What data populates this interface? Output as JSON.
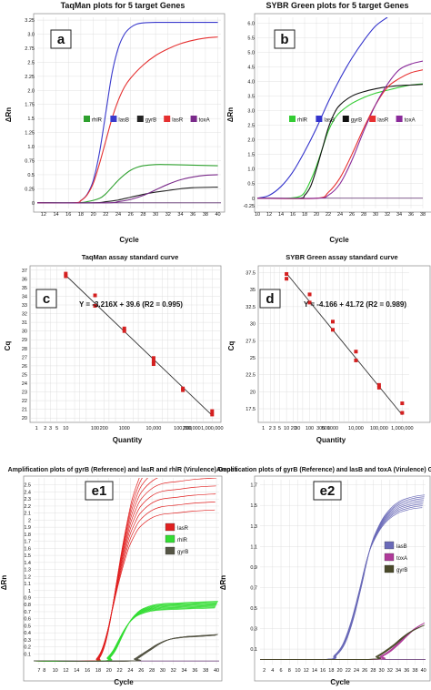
{
  "chart_data": [
    {
      "id": "a",
      "type": "line",
      "panel_label": "a",
      "title": "TaqMan plots for 5 target Genes",
      "xlabel": "Cycle",
      "ylabel": "ΔRn",
      "xlim": [
        11,
        40.5
      ],
      "ylim": [
        -0.1,
        3.3
      ],
      "xticks": [
        12,
        14,
        16,
        18,
        20,
        22,
        24,
        26,
        28,
        30,
        32,
        34,
        36,
        38,
        40
      ],
      "yticks": [
        0,
        0.25,
        0.5,
        0.75,
        1.0,
        1.25,
        1.5,
        1.75,
        2.0,
        2.25,
        2.5,
        2.75,
        3.0,
        3.25
      ],
      "ytick_labels": [
        "0",
        "0.25",
        "0.5",
        "0.75",
        "1.0",
        "1.25",
        "1.5",
        "1.75",
        "2.0",
        "2.25",
        "2.5",
        "2.75",
        "3.0",
        "3.25"
      ],
      "grid": true,
      "legend_position": "center-right",
      "series": [
        {
          "name": "rhlR",
          "color": "#2ea02e",
          "x": [
            11,
            17,
            19,
            21,
            22,
            23,
            24,
            25,
            26,
            27,
            28,
            30,
            32,
            36,
            40
          ],
          "y": [
            0,
            0,
            0.02,
            0.08,
            0.16,
            0.28,
            0.4,
            0.5,
            0.58,
            0.63,
            0.66,
            0.68,
            0.68,
            0.67,
            0.66
          ]
        },
        {
          "name": "lasB",
          "color": "#3a3acc",
          "x": [
            11,
            17,
            18,
            19,
            20,
            21,
            22,
            23,
            24,
            25,
            26,
            27,
            28,
            30,
            34,
            40
          ],
          "y": [
            0,
            0,
            0.04,
            0.15,
            0.4,
            0.9,
            1.6,
            2.3,
            2.75,
            3.0,
            3.12,
            3.18,
            3.2,
            3.21,
            3.21,
            3.21
          ]
        },
        {
          "name": "gyrB",
          "color": "#222222",
          "x": [
            11,
            20,
            22,
            24,
            26,
            28,
            30,
            32,
            34,
            36,
            40
          ],
          "y": [
            0,
            0,
            0.02,
            0.05,
            0.1,
            0.15,
            0.19,
            0.22,
            0.25,
            0.27,
            0.28
          ]
        },
        {
          "name": "lasR",
          "color": "#e53030",
          "x": [
            11,
            17,
            18,
            19,
            20,
            21,
            22,
            23,
            24,
            25,
            26,
            28,
            30,
            32,
            34,
            36,
            38,
            40
          ],
          "y": [
            0,
            0,
            0.04,
            0.14,
            0.35,
            0.7,
            1.1,
            1.5,
            1.82,
            2.06,
            2.22,
            2.45,
            2.62,
            2.74,
            2.83,
            2.89,
            2.93,
            2.95
          ]
        },
        {
          "name": "toxA",
          "color": "#7a2a8a",
          "x": [
            11,
            22,
            24,
            26,
            28,
            30,
            32,
            34,
            36,
            38,
            40
          ],
          "y": [
            0,
            0,
            0.02,
            0.06,
            0.13,
            0.23,
            0.33,
            0.41,
            0.46,
            0.49,
            0.5
          ]
        }
      ]
    },
    {
      "id": "b",
      "type": "line",
      "panel_label": "b",
      "title": "SYBR Green plots for 5 target Genes",
      "xlabel": "Cycle",
      "ylabel": "ΔRn",
      "xlim": [
        10,
        38
      ],
      "ylim": [
        -0.35,
        6.2
      ],
      "xticks": [
        10,
        12,
        14,
        16,
        18,
        20,
        22,
        24,
        26,
        28,
        30,
        32,
        34,
        36,
        38
      ],
      "yticks": [
        -0.25,
        0,
        0.5,
        1.0,
        1.5,
        2.0,
        2.5,
        3.0,
        3.5,
        4.0,
        4.5,
        5.0,
        5.5,
        6.0
      ],
      "ytick_labels": [
        "-0.25",
        "0",
        "0.5",
        "1.0",
        "1.5",
        "2.0",
        "2.5",
        "3.0",
        "3.5",
        "4.0",
        "4.5",
        "5.0",
        "5.5",
        "6.0"
      ],
      "grid": true,
      "legend_position": "center-right",
      "series": [
        {
          "name": "rhlR",
          "color": "#33cc33",
          "x": [
            10,
            15,
            17,
            18,
            19,
            20,
            21,
            22,
            23,
            24,
            26,
            28,
            30,
            32,
            34,
            36,
            38
          ],
          "y": [
            0,
            0,
            0.05,
            0.2,
            0.6,
            1.1,
            1.7,
            2.3,
            2.7,
            2.95,
            3.25,
            3.45,
            3.6,
            3.7,
            3.8,
            3.88,
            3.92
          ]
        },
        {
          "name": "lasB",
          "color": "#3333cc",
          "x": [
            10,
            12,
            14,
            16,
            18,
            20,
            22,
            24,
            26,
            28,
            30,
            32
          ],
          "y": [
            0,
            0.1,
            0.4,
            0.9,
            1.6,
            2.4,
            3.3,
            4.1,
            4.8,
            5.4,
            5.9,
            6.2
          ]
        },
        {
          "name": "gyrB",
          "color": "#111111",
          "x": [
            10,
            17,
            18,
            19,
            20,
            21,
            22,
            23,
            24,
            26,
            28,
            30,
            32,
            34,
            36,
            38
          ],
          "y": [
            0,
            0,
            0.1,
            0.4,
            1.0,
            1.7,
            2.4,
            2.9,
            3.2,
            3.5,
            3.65,
            3.75,
            3.82,
            3.86,
            3.88,
            3.9
          ]
        },
        {
          "name": "lasR",
          "color": "#e83030",
          "x": [
            10,
            20,
            22,
            24,
            26,
            28,
            30,
            32,
            34,
            36,
            38
          ],
          "y": [
            0,
            0,
            0.2,
            0.7,
            1.5,
            2.4,
            3.2,
            3.8,
            4.1,
            4.3,
            4.4
          ]
        },
        {
          "name": "toxA",
          "color": "#8a2a9a",
          "x": [
            10,
            20,
            22,
            24,
            26,
            28,
            30,
            32,
            34,
            36,
            38
          ],
          "y": [
            0,
            0,
            0.1,
            0.5,
            1.3,
            2.3,
            3.2,
            3.9,
            4.4,
            4.6,
            4.7
          ]
        }
      ]
    },
    {
      "id": "c",
      "type": "scatter",
      "panel_label": "c",
      "title": "TaqMan assay standard curve",
      "xlabel": "Quantity",
      "ylabel": "Cq",
      "xscale": "log",
      "xlim": [
        0.6,
        2000000
      ],
      "ylim": [
        19.5,
        37.5
      ],
      "xticks": [
        1,
        2,
        3,
        5,
        10,
        20,
        30,
        50,
        100,
        200,
        300,
        500,
        1000,
        2000,
        3000,
        5000,
        10000,
        20000,
        30000,
        50000,
        100000,
        200000,
        300000,
        500000,
        1000000
      ],
      "xtick_labels": [
        "1",
        "2",
        "3",
        "5",
        "10",
        "",
        "",
        "",
        "100",
        "200",
        "",
        "",
        "1000",
        "",
        "",
        "",
        "10,000",
        "",
        "",
        "",
        "100,000",
        "200,000",
        "",
        "",
        "1,000,000"
      ],
      "yticks": [
        20,
        21,
        22,
        23,
        24,
        25,
        26,
        27,
        28,
        29,
        30,
        31,
        32,
        33,
        34,
        35,
        36,
        37
      ],
      "grid": true,
      "equation": "Y = -3.216X + 39.6  (R2 = 0.995)",
      "points": [
        {
          "x": 10,
          "y": 36.6
        },
        {
          "x": 10,
          "y": 36.3
        },
        {
          "x": 100,
          "y": 34.1
        },
        {
          "x": 100,
          "y": 32.9
        },
        {
          "x": 1000,
          "y": 30.3
        },
        {
          "x": 1000,
          "y": 30.0
        },
        {
          "x": 10000,
          "y": 26.9
        },
        {
          "x": 10000,
          "y": 26.5
        },
        {
          "x": 10000,
          "y": 26.2
        },
        {
          "x": 100000,
          "y": 23.4
        },
        {
          "x": 100000,
          "y": 23.2
        },
        {
          "x": 1000000,
          "y": 20.8
        },
        {
          "x": 1000000,
          "y": 20.4
        }
      ],
      "fit_line": {
        "x": [
          10,
          1000000
        ],
        "y": [
          36.4,
          20.3
        ]
      }
    },
    {
      "id": "d",
      "type": "scatter",
      "panel_label": "d",
      "title": "SYBR Green assay standard curve",
      "xlabel": "Quantity",
      "ylabel": "Cq",
      "xscale": "log",
      "xlim": [
        0.6,
        2000000
      ],
      "ylim": [
        15.5,
        38.5
      ],
      "xticks": [
        1,
        2,
        3,
        5,
        10,
        20,
        30,
        50,
        100,
        200,
        300,
        500,
        1000,
        2000,
        3000,
        5000,
        10000,
        20000,
        30000,
        50000,
        100000,
        200000,
        300000,
        500000,
        1000000
      ],
      "xtick_labels": [
        "1",
        "2",
        "3",
        "5",
        "10",
        "20",
        "30",
        "",
        "100",
        "",
        "300",
        "500",
        "1000",
        "",
        "",
        "",
        "10,000",
        "",
        "",
        "",
        "100,000",
        "",
        "",
        "",
        "1,000,000"
      ],
      "yticks": [
        17.5,
        20,
        22.5,
        25,
        27.5,
        30,
        32.5,
        35,
        37.5
      ],
      "grid": true,
      "equation": "Y = -4.166 + 41.72  (R2 = 0.989)",
      "points": [
        {
          "x": 10,
          "y": 37.3
        },
        {
          "x": 10,
          "y": 36.6
        },
        {
          "x": 100,
          "y": 34.3
        },
        {
          "x": 100,
          "y": 33.1
        },
        {
          "x": 1000,
          "y": 30.3
        },
        {
          "x": 1000,
          "y": 29.1
        },
        {
          "x": 10000,
          "y": 25.9
        },
        {
          "x": 10000,
          "y": 24.6
        },
        {
          "x": 100000,
          "y": 21.0
        },
        {
          "x": 100000,
          "y": 20.6
        },
        {
          "x": 1000000,
          "y": 18.3
        },
        {
          "x": 1000000,
          "y": 16.9
        }
      ],
      "fit_line": {
        "x": [
          10,
          1000000
        ],
        "y": [
          37.4,
          16.6
        ]
      }
    },
    {
      "id": "e1",
      "type": "line",
      "panel_label": "e1",
      "title": "Amplification plots of gyrB (Reference) and lasR and rhlR (Virulence) Genes",
      "xlabel": "Cycle",
      "ylabel": "ΔRn",
      "xlim": [
        6,
        40.5
      ],
      "ylim": [
        -0.05,
        2.6
      ],
      "xticks": [
        7,
        8,
        10,
        12,
        14,
        16,
        18,
        20,
        22,
        24,
        26,
        28,
        30,
        32,
        34,
        36,
        38,
        40
      ],
      "yticks": [
        0.1,
        0.2,
        0.3,
        0.4,
        0.5,
        0.6,
        0.7,
        0.8,
        0.9,
        1,
        1.1,
        1.2,
        1.3,
        1.4,
        1.5,
        1.6,
        1.7,
        1.8,
        1.9,
        2,
        2.1,
        2.2,
        2.3,
        2.4,
        2.5
      ],
      "ytick_labels": [
        "0.1",
        "0.2",
        "0.3",
        "0.4",
        "0.5",
        "0.6",
        "0.7",
        "0.8",
        "0.9",
        "1",
        "1.1",
        "1.2",
        "1.3",
        "1.4",
        "1.5",
        "1.6",
        "1.7",
        "1.8",
        "1.9",
        "2",
        "2.1",
        "2.2",
        "2.3",
        "2.4",
        "2.5"
      ],
      "grid": true,
      "legend_position": "right",
      "series": [
        {
          "name": "lasR",
          "color": "#e02020",
          "replicates": 9,
          "spread": 0.35,
          "x": [
            6,
            17,
            18,
            19,
            20,
            21,
            22,
            23,
            24,
            25,
            26,
            28,
            30,
            33,
            36,
            40
          ],
          "y": [
            0,
            0,
            0.04,
            0.2,
            0.5,
            0.9,
            1.3,
            1.65,
            1.95,
            2.15,
            2.3,
            2.45,
            2.52,
            2.55,
            2.58,
            2.6
          ]
        },
        {
          "name": "rhlR",
          "color": "#33dd33",
          "replicates": 10,
          "spread": 0.12,
          "x": [
            6,
            19,
            20,
            21,
            22,
            23,
            24,
            25,
            26,
            28,
            30,
            33,
            36,
            40
          ],
          "y": [
            0,
            0,
            0.05,
            0.15,
            0.3,
            0.45,
            0.57,
            0.65,
            0.7,
            0.75,
            0.77,
            0.78,
            0.79,
            0.8
          ]
        },
        {
          "name": "gyrB",
          "color": "#555545",
          "replicates": 8,
          "spread": 0.04,
          "x": [
            6,
            24,
            25,
            26,
            27,
            28,
            29,
            30,
            31,
            32,
            34,
            36,
            38,
            40
          ],
          "y": [
            0,
            0,
            0.03,
            0.08,
            0.13,
            0.18,
            0.23,
            0.27,
            0.3,
            0.32,
            0.34,
            0.35,
            0.36,
            0.37
          ]
        }
      ]
    },
    {
      "id": "e2",
      "type": "line",
      "panel_label": "e2",
      "title": "Amplification plots of gyrB (Reference) and lasB and toxA (Virulence) Genes",
      "xlabel": "Cycle",
      "ylabel": "ΔRn",
      "xlim": [
        1,
        40.5
      ],
      "ylim": [
        -0.05,
        1.75
      ],
      "xticks": [
        2,
        4,
        6,
        8,
        10,
        12,
        14,
        16,
        18,
        20,
        22,
        24,
        26,
        28,
        30,
        32,
        34,
        36,
        38,
        40
      ],
      "yticks": [
        0.1,
        0.3,
        0.5,
        0.7,
        0.9,
        1.1,
        1.3,
        1.5,
        1.7
      ],
      "ytick_labels": [
        "0.1",
        "0.3",
        "0.5",
        "0.7",
        "0.9",
        "1.1",
        "1.3",
        "1.5",
        "1.7"
      ],
      "grid": true,
      "legend_position": "right",
      "series": [
        {
          "name": "lasB",
          "color": "#6a6ab8",
          "replicates": 8,
          "spread": 0.08,
          "x": [
            1,
            17,
            19,
            21,
            23,
            25,
            26,
            27,
            28,
            30,
            32,
            34,
            36,
            38,
            40
          ],
          "y": [
            0,
            0,
            0.04,
            0.15,
            0.38,
            0.7,
            0.88,
            1.04,
            1.16,
            1.32,
            1.42,
            1.48,
            1.51,
            1.53,
            1.54
          ]
        },
        {
          "name": "toxA",
          "color": "#b03a9a",
          "replicates": 4,
          "spread": 0.04,
          "x": [
            1,
            28,
            30,
            32,
            34,
            36,
            38,
            40
          ],
          "y": [
            0,
            0,
            0.03,
            0.08,
            0.15,
            0.23,
            0.3,
            0.35
          ]
        },
        {
          "name": "gyrB",
          "color": "#4a4a2a",
          "replicates": 4,
          "spread": 0.03,
          "x": [
            1,
            27,
            29,
            31,
            33,
            35,
            37,
            40
          ],
          "y": [
            0,
            0,
            0.03,
            0.08,
            0.14,
            0.21,
            0.27,
            0.33
          ]
        }
      ]
    }
  ]
}
